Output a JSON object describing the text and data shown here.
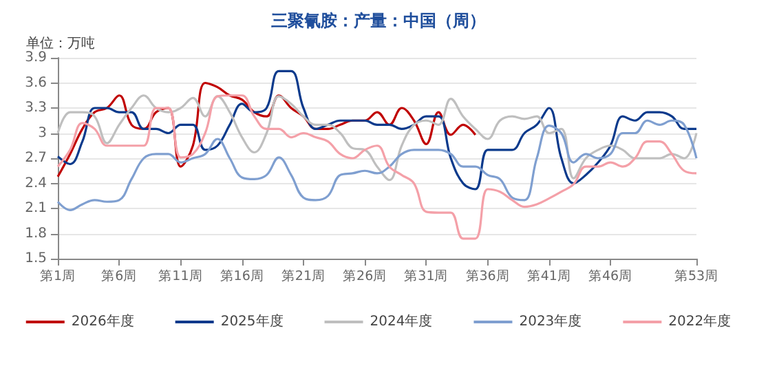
{
  "chart_data": {
    "type": "line",
    "title": "三聚氰胺：产量：中国（周）",
    "ylabel": "单位：万吨",
    "categories": [
      "第1周",
      null,
      null,
      null,
      null,
      "第6周",
      null,
      null,
      null,
      null,
      "第11周",
      null,
      null,
      null,
      null,
      "第16周",
      null,
      null,
      null,
      null,
      "第21周",
      null,
      null,
      null,
      null,
      "第26周",
      null,
      null,
      null,
      null,
      "第31周",
      null,
      null,
      null,
      null,
      "第36周",
      null,
      null,
      null,
      null,
      "第41周",
      null,
      null,
      null,
      null,
      "第46周",
      null,
      null,
      null,
      null,
      null,
      null,
      "第53周"
    ],
    "series": [
      {
        "name": "2026年度",
        "color": "#c00000",
        "values": [
          2.48,
          2.75,
          3.05,
          3.25,
          3.3,
          3.45,
          3.1,
          3.05,
          3.25,
          3.3,
          2.6,
          2.85,
          3.6,
          3.55,
          3.45,
          3.4,
          3.25,
          3.2,
          3.45,
          3.3,
          3.2,
          3.05,
          3.05,
          3.1,
          3.15,
          3.15,
          3.25,
          3.1,
          3.3,
          3.15,
          2.87,
          3.25,
          2.98,
          3.1,
          2.98,
          null,
          null,
          null,
          null,
          null,
          null,
          null,
          null,
          null,
          null,
          null,
          null,
          null,
          null,
          null,
          null,
          null,
          null
        ]
      },
      {
        "name": "2025年度",
        "color": "#0b3a8c",
        "values": [
          2.72,
          2.63,
          2.9,
          3.3,
          3.3,
          3.25,
          3.25,
          3.05,
          3.05,
          3.0,
          3.1,
          3.1,
          2.8,
          2.85,
          3.1,
          3.35,
          3.25,
          3.3,
          3.74,
          3.74,
          3.3,
          3.05,
          3.1,
          3.15,
          3.15,
          3.15,
          3.1,
          3.1,
          3.05,
          3.1,
          3.2,
          3.2,
          2.7,
          2.4,
          2.33,
          2.8,
          2.8,
          2.8,
          3.0,
          3.1,
          3.3,
          2.7,
          2.4,
          2.5,
          2.65,
          2.85,
          3.2,
          3.15,
          3.25,
          3.25,
          3.2,
          3.05,
          3.05
        ]
      },
      {
        "name": "2024年度",
        "color": "#bfbfbf",
        "values": [
          3.0,
          3.25,
          3.25,
          3.2,
          2.88,
          3.1,
          3.3,
          3.45,
          3.3,
          3.25,
          3.3,
          3.42,
          3.2,
          3.44,
          3.25,
          2.95,
          2.77,
          3.0,
          3.44,
          3.35,
          3.2,
          3.1,
          3.1,
          3.0,
          2.82,
          2.8,
          2.6,
          2.44,
          2.85,
          3.1,
          3.15,
          3.1,
          3.41,
          3.2,
          3.05,
          2.93,
          3.15,
          3.2,
          3.17,
          3.2,
          3.0,
          3.05,
          2.46,
          2.7,
          2.8,
          2.85,
          2.8,
          2.7,
          2.7,
          2.7,
          2.75,
          2.7,
          3.0
        ]
      },
      {
        "name": "2023年度",
        "color": "#7f9fd0",
        "values": [
          2.18,
          2.08,
          2.15,
          2.2,
          2.18,
          2.2,
          2.45,
          2.7,
          2.75,
          2.75,
          2.65,
          2.7,
          2.75,
          2.93,
          2.7,
          2.47,
          2.45,
          2.5,
          2.71,
          2.5,
          2.23,
          2.2,
          2.25,
          2.5,
          2.52,
          2.55,
          2.52,
          2.6,
          2.75,
          2.8,
          2.8,
          2.8,
          2.75,
          2.6,
          2.6,
          2.5,
          2.45,
          2.23,
          2.2,
          2.7,
          3.09,
          3.0,
          2.65,
          2.75,
          2.7,
          2.75,
          3.0,
          3.0,
          3.15,
          3.1,
          3.15,
          3.1,
          2.7
        ]
      },
      {
        "name": "2022年度",
        "color": "#f4a0a8",
        "values": [
          2.6,
          2.8,
          3.12,
          3.05,
          2.85,
          2.85,
          2.85,
          2.85,
          3.3,
          3.3,
          2.71,
          2.75,
          3.0,
          3.44,
          3.45,
          3.45,
          3.2,
          3.05,
          3.05,
          2.95,
          3.0,
          2.95,
          2.9,
          2.75,
          2.7,
          2.8,
          2.85,
          2.6,
          2.5,
          2.4,
          2.06,
          2.05,
          2.05,
          1.74,
          1.74,
          2.33,
          2.3,
          2.2,
          2.12,
          2.15,
          2.22,
          2.3,
          2.39,
          2.6,
          2.6,
          2.65,
          2.6,
          2.7,
          2.9,
          2.9,
          2.75,
          2.55,
          2.52
        ]
      }
    ],
    "ylim": [
      1.5,
      3.9
    ],
    "yticks": [
      1.5,
      1.8,
      2.1,
      2.4,
      2.7,
      3,
      3.3,
      3.6,
      3.9
    ],
    "grid": "y",
    "legend": "bottom",
    "marker": "none",
    "line_style": "solid"
  }
}
